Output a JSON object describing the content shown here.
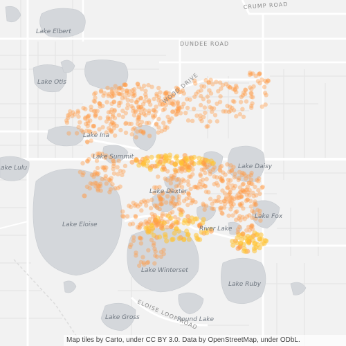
{
  "map": {
    "lake_labels": [
      "Lake Elbert",
      "Lake Otis",
      "Lake Ina",
      "Lake Summit",
      "Lake Lulu",
      "Lake Daisy",
      "Lake Dexter",
      "Lake Fox",
      "River Lake",
      "Lake Eloise",
      "Lake Winterset",
      "Lake Ruby",
      "Lake Gross",
      "Round Lake"
    ],
    "road_labels": [
      "CRUMP ROAD",
      "DUNDEE ROAD",
      "WOOD DRIVE",
      "ELOISE LOOP ROAD"
    ],
    "attribution": "Map tiles by Carto, under CC BY 3.0. Data by OpenStreetMap, under ODbL.",
    "colors": {
      "water": "#d4d7db",
      "land": "#f2f2f2",
      "road": "#ffffff",
      "point": "#ff9a47",
      "point_dense": "#ffc233"
    },
    "heat_layer": "point-density overlay of locations (orange circles, yellow where clustered)"
  }
}
